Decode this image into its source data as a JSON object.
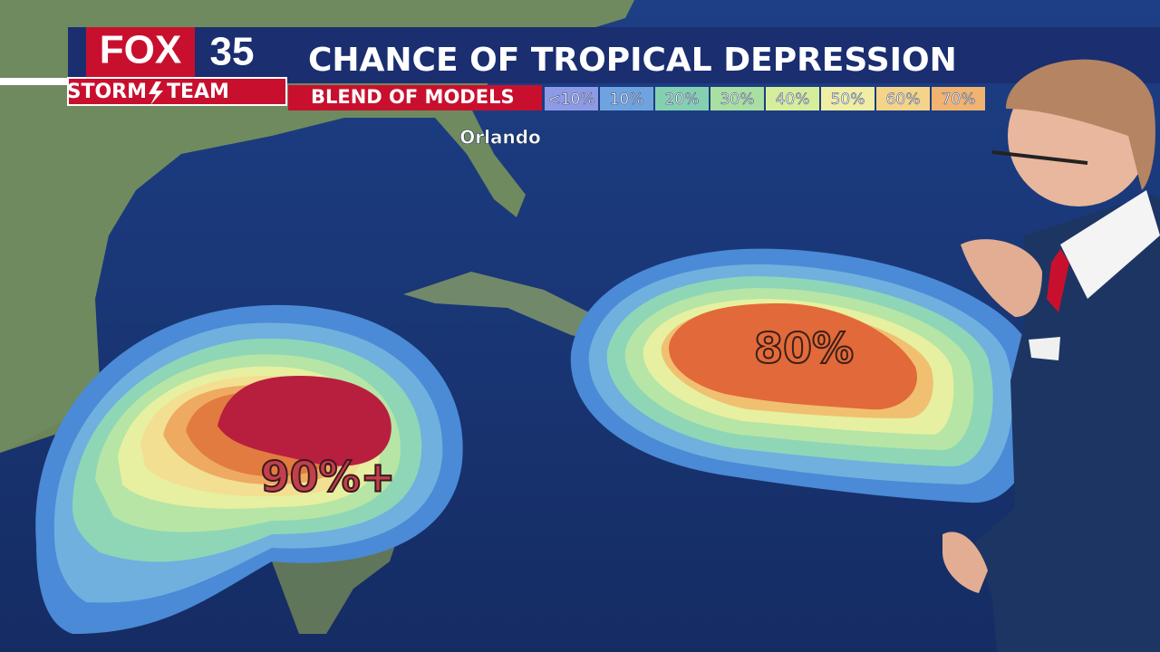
{
  "header": {
    "logo_fox": "FOX",
    "logo_channel": "35",
    "storm": "STORM",
    "team": "TEAM",
    "title": "CHANCE OF TROPICAL DEPRESSION",
    "subtitle": "BLEND OF MODELS"
  },
  "legend": {
    "items": [
      {
        "label": "<10%",
        "color": "#8d9be6"
      },
      {
        "label": "10%",
        "color": "#6fa3df"
      },
      {
        "label": "20%",
        "color": "#86d0b2"
      },
      {
        "label": "30%",
        "color": "#a9dfa3"
      },
      {
        "label": "40%",
        "color": "#d6ee9c"
      },
      {
        "label": "50%",
        "color": "#efeea4"
      },
      {
        "label": "60%",
        "color": "#f4d489"
      },
      {
        "label": "70%",
        "color": "#f0b370"
      }
    ]
  },
  "map": {
    "city": "Orlando",
    "west_chance": "90%+",
    "east_chance": "80%"
  }
}
